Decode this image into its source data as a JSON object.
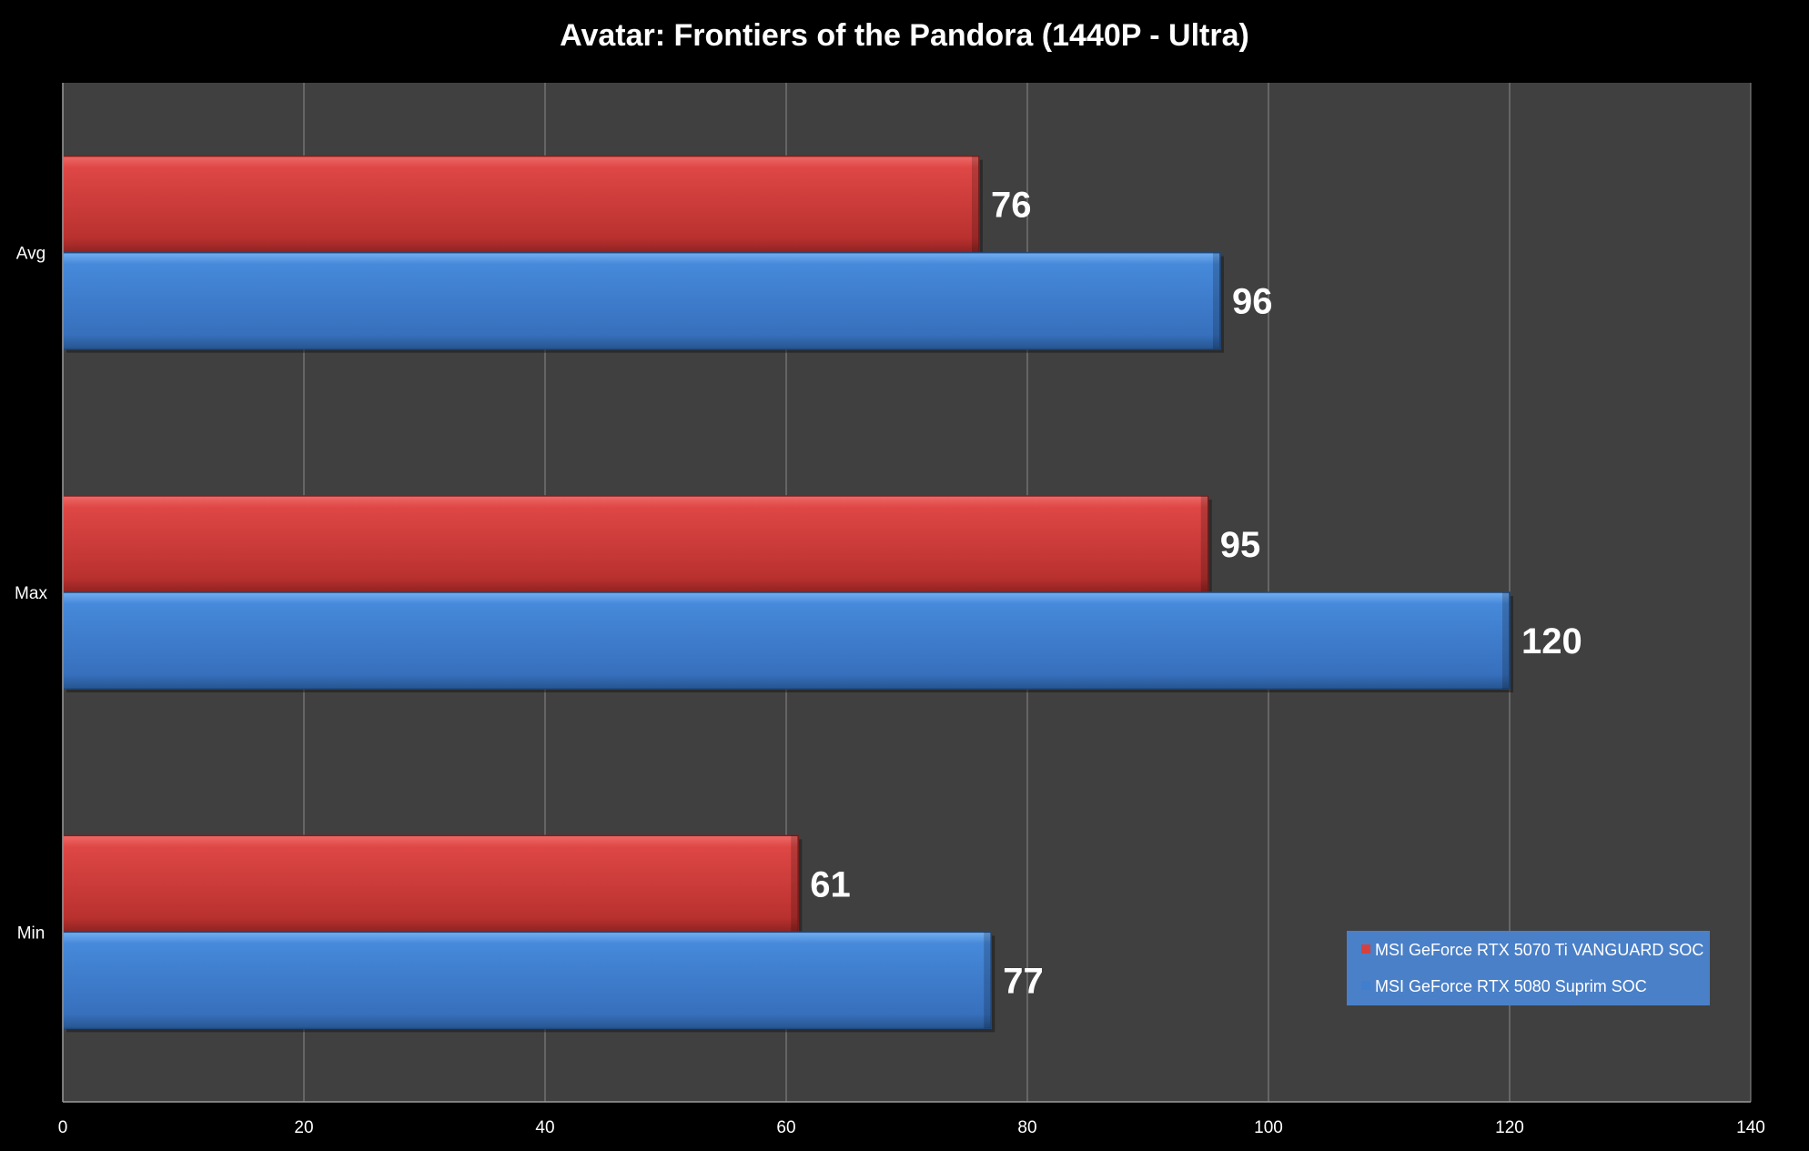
{
  "chart_data": {
    "type": "bar",
    "orientation": "horizontal",
    "title": "Avatar: Frontiers of the Pandora (1440P - Ultra)",
    "categories": [
      "Avg",
      "Max",
      "Min"
    ],
    "series": [
      {
        "name": "MSI GeForce RTX 5070 Ti VANGUARD SOC",
        "color": "#d8403e",
        "values": [
          76,
          95,
          61
        ]
      },
      {
        "name": "MSI GeForce RTX 5080 Suprim SOC",
        "color": "#3f7fce",
        "values": [
          96,
          120,
          77
        ]
      }
    ],
    "xlim": [
      0,
      140
    ],
    "xticks": [
      0,
      20,
      40,
      60,
      80,
      100,
      120,
      140
    ],
    "grid": true,
    "legend_position": "bottom-right",
    "plot_background": "#404040"
  }
}
